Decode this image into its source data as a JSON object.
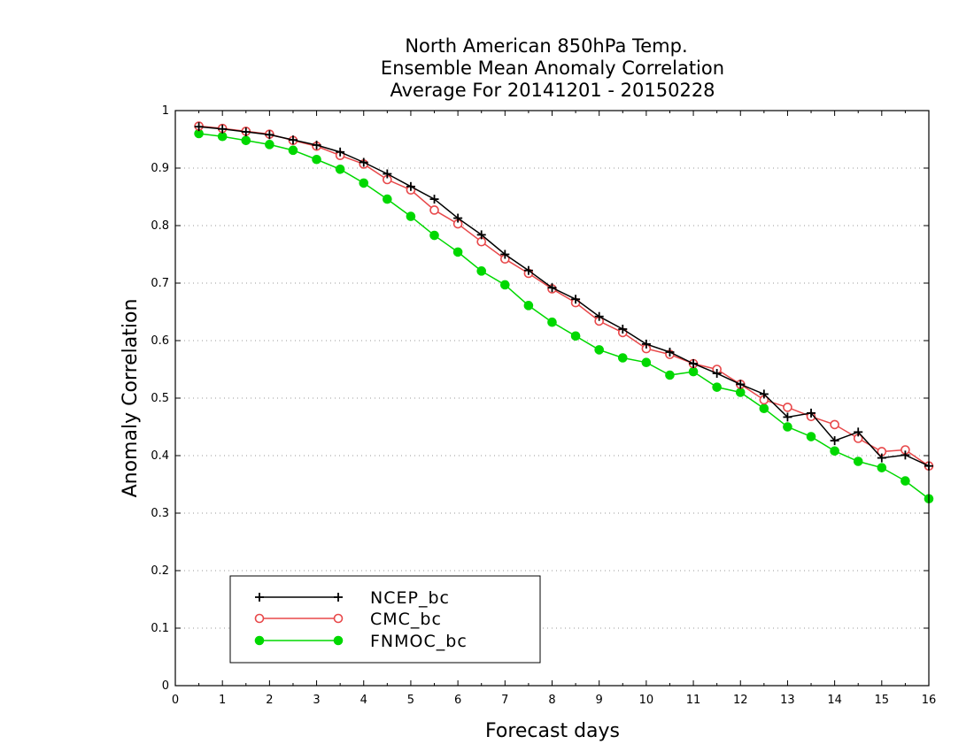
{
  "chart_data": {
    "type": "line",
    "title": [
      "North American 850hPa Temp.",
      "Ensemble Mean Anomaly Correlation",
      "Average For 20141201 - 20150228"
    ],
    "xlabel": "Forecast days",
    "ylabel": "Anomaly Correlation",
    "xlim": [
      0,
      16
    ],
    "ylim": [
      0,
      1
    ],
    "x_ticks": [
      "0",
      "1",
      "2",
      "3",
      "4",
      "5",
      "6",
      "7",
      "8",
      "9",
      "10",
      "11",
      "12",
      "13",
      "14",
      "15",
      "16"
    ],
    "y_ticks": [
      "0",
      "0.1",
      "0.2",
      "0.3",
      "0.4",
      "0.5",
      "0.6",
      "0.7",
      "0.8",
      "0.9",
      "1"
    ],
    "grid": "horizontal-dotted",
    "legend_position": "bottom-left",
    "x": [
      0.5,
      1,
      1.5,
      2,
      2.5,
      3,
      3.5,
      4,
      4.5,
      5,
      5.5,
      6,
      6.5,
      7,
      7.5,
      8,
      8.5,
      9,
      9.5,
      10,
      10.5,
      11,
      11.5,
      12,
      12.5,
      13,
      13.5,
      14,
      14.5,
      15,
      15.5,
      16
    ],
    "series": [
      {
        "name": "NCEP_bc",
        "color": "#000000",
        "marker": "plus",
        "values": [
          0.972,
          0.968,
          0.963,
          0.958,
          0.949,
          0.94,
          0.928,
          0.91,
          0.89,
          0.868,
          0.846,
          0.813,
          0.784,
          0.75,
          0.722,
          0.692,
          0.672,
          0.642,
          0.62,
          0.594,
          0.58,
          0.56,
          0.543,
          0.524,
          0.507,
          0.467,
          0.474,
          0.426,
          0.441,
          0.396,
          0.401,
          0.382
        ]
      },
      {
        "name": "CMC_bc",
        "color": "#e8484a",
        "marker": "open-circle",
        "values": [
          0.973,
          0.969,
          0.964,
          0.959,
          0.948,
          0.938,
          0.922,
          0.907,
          0.88,
          0.862,
          0.827,
          0.803,
          0.772,
          0.742,
          0.717,
          0.69,
          0.666,
          0.634,
          0.614,
          0.586,
          0.576,
          0.56,
          0.55,
          0.524,
          0.497,
          0.484,
          0.468,
          0.454,
          0.43,
          0.407,
          0.41,
          0.382
        ]
      },
      {
        "name": "FNMOC_bc",
        "color": "#00d800",
        "marker": "filled-circle",
        "values": [
          0.96,
          0.955,
          0.948,
          0.941,
          0.931,
          0.915,
          0.898,
          0.874,
          0.846,
          0.816,
          0.783,
          0.754,
          0.721,
          0.697,
          0.661,
          0.632,
          0.608,
          0.584,
          0.57,
          0.562,
          0.54,
          0.546,
          0.519,
          0.51,
          0.482,
          0.45,
          0.433,
          0.408,
          0.39,
          0.379,
          0.356,
          0.325
        ]
      }
    ]
  }
}
